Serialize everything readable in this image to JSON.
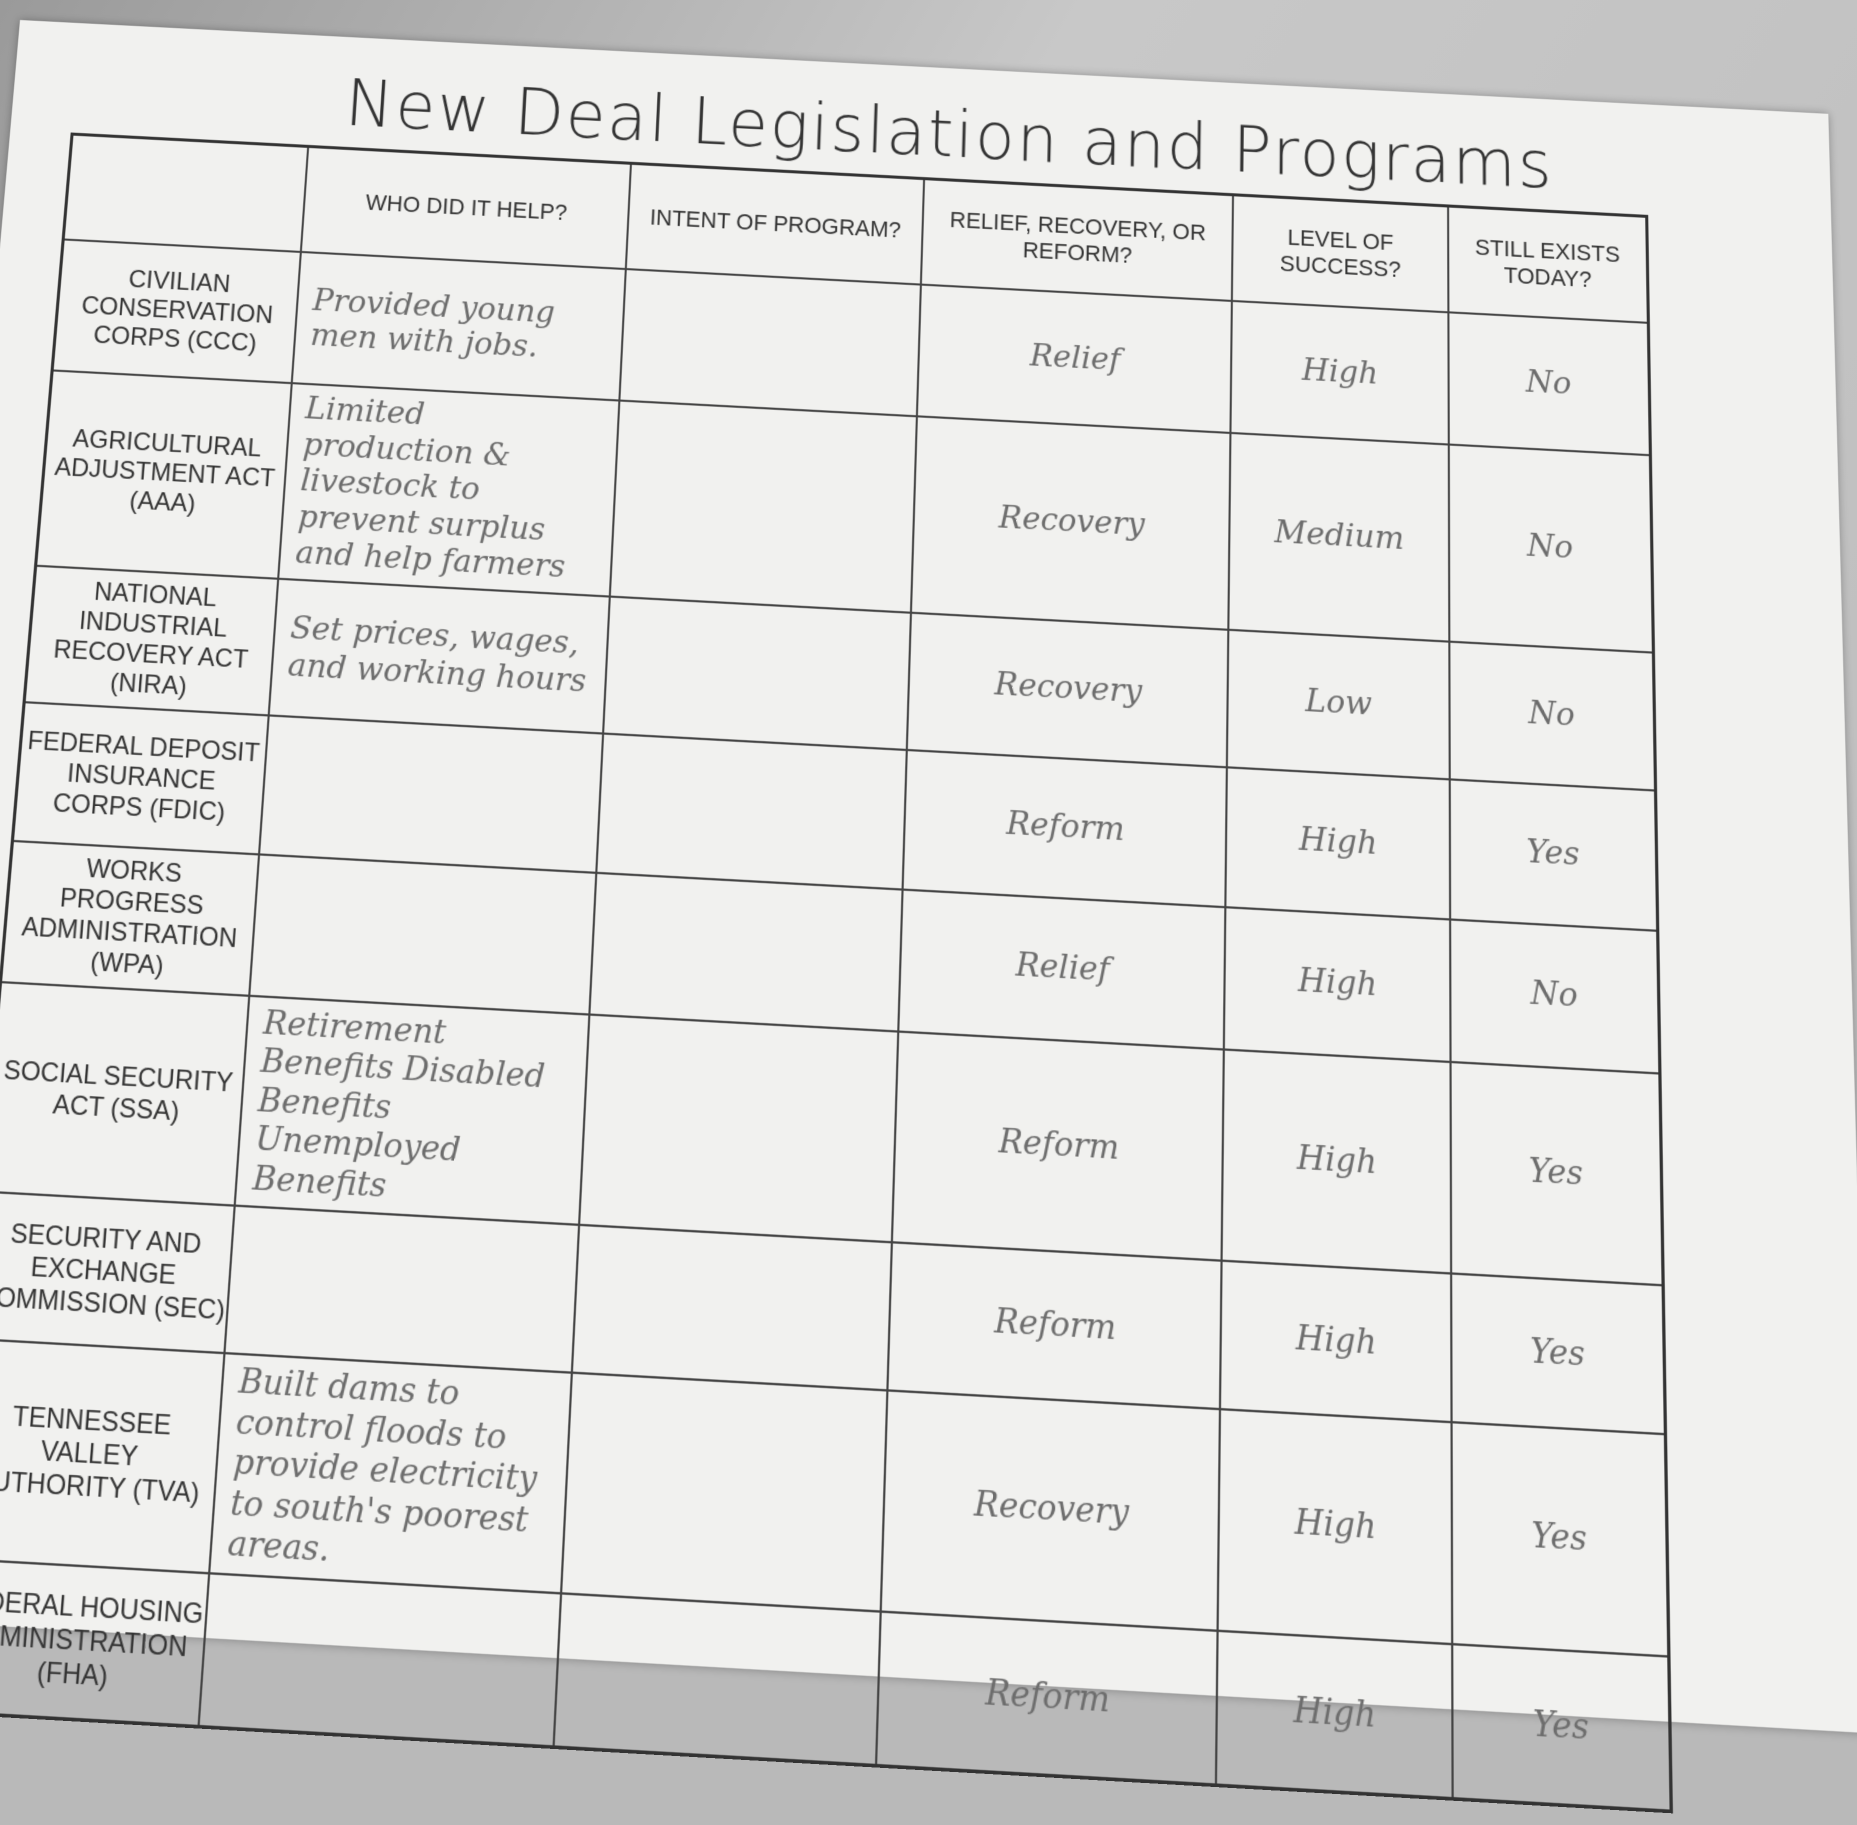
{
  "title": "New Deal Legislation and Programs",
  "headers": [
    "",
    "WHO DID IT HELP?",
    "INTENT OF PROGRAM?",
    "RELIEF, RECOVERY, OR REFORM?",
    "LEVEL OF SUCCESS?",
    "STILL EXISTS TODAY?"
  ],
  "rows": [
    {
      "program": "Civilian Conservation Corps (CCC)",
      "who": "Provided young men with jobs.",
      "intent": "",
      "type": "Relief",
      "success": "High",
      "exists": "No"
    },
    {
      "program": "Agricultural Adjustment Act (AAA)",
      "who": "Limited production & livestock to prevent surplus and help farmers",
      "intent": "",
      "type": "Recovery",
      "success": "Medium",
      "exists": "No"
    },
    {
      "program": "National Industrial Recovery Act (NIRA)",
      "who": "Set prices, wages, and working hours",
      "intent": "",
      "type": "Recovery",
      "success": "Low",
      "exists": "No"
    },
    {
      "program": "Federal Deposit Insurance Corps (FDIC)",
      "who": "",
      "intent": "",
      "type": "Reform",
      "success": "High",
      "exists": "Yes"
    },
    {
      "program": "Works Progress Administration (WPA)",
      "who": "",
      "intent": "",
      "type": "Relief",
      "success": "High",
      "exists": "No"
    },
    {
      "program": "Social Security Act (SSA)",
      "who": "Retirement Benefits Disabled Benefits Unemployed Benefits",
      "intent": "",
      "type": "Reform",
      "success": "High",
      "exists": "Yes"
    },
    {
      "program": "Security and Exchange Commission (SEC)",
      "who": "",
      "intent": "",
      "type": "Reform",
      "success": "High",
      "exists": "Yes"
    },
    {
      "program": "Tennessee Valley Authority (TVA)",
      "who": "Built dams to control floods to provide electricity to south's poorest areas.",
      "intent": "",
      "type": "Recovery",
      "success": "High",
      "exists": "Yes"
    },
    {
      "program": "Federal Housing Administration (FHA)",
      "who": "",
      "intent": "",
      "type": "Reform",
      "success": "High",
      "exists": "Yes"
    }
  ]
}
